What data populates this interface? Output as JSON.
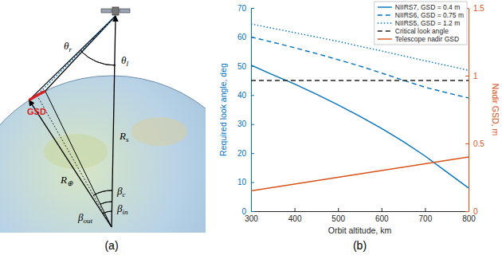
{
  "diagram": {
    "title": "(a)",
    "labels": {
      "theta_r": {
        "symbol": "θ",
        "subscript": "r"
      },
      "theta_l": {
        "symbol": "θ",
        "subscript": "l"
      },
      "r_s": {
        "symbol": "R",
        "subscript": "s"
      },
      "gsd": "GSD",
      "beta_c": {
        "symbol": "β",
        "subscript": "c"
      },
      "r_earth": {
        "symbol": "R",
        "subscript": "⊕"
      },
      "beta_out": {
        "symbol": "β",
        "subscript": "out"
      },
      "beta_in": {
        "symbol": "β",
        "subscript": "in"
      }
    }
  },
  "chart_data": {
    "type": "line",
    "title": "(b)",
    "x_label": "Orbit altitude, km",
    "y_label": "Required look angle, deg",
    "y2_label": "Nadir GSD, m",
    "x": [
      300,
      350,
      400,
      450,
      500,
      550,
      600,
      650,
      700,
      750,
      800
    ],
    "xlim": [
      300,
      800
    ],
    "xticks": [
      300,
      400,
      500,
      600,
      700,
      800
    ],
    "ylim": [
      0,
      70
    ],
    "yticks": [
      0,
      10,
      20,
      30,
      40,
      50,
      60,
      70
    ],
    "y2lim": [
      0,
      1.5
    ],
    "y2ticks": [
      0,
      0.5,
      1,
      1.5
    ],
    "grid": false,
    "legend": "northeast",
    "series": [
      {
        "name": "NIIRS7, GSD = 0.4 m",
        "color": "#0072BD",
        "line_style": "solid",
        "values": [
          50.3,
          47,
          43.8,
          40.3,
          36.6,
          32.7,
          28.5,
          24,
          19,
          13.5,
          8
        ]
      },
      {
        "name": "NIIRS6, GSD = 0.75 m",
        "color": "#0072BD",
        "line_style": "dashed",
        "values": [
          60,
          58.2,
          56.3,
          54.3,
          52.2,
          50,
          47.6,
          45.1,
          42.7,
          40.8,
          39
        ]
      },
      {
        "name": "NIIRS5, GSD = 1.2 m",
        "color": "#0072BD",
        "line_style": "dotted",
        "values": [
          64.5,
          63,
          61.5,
          60,
          58.5,
          56.8,
          55.2,
          53.5,
          51.8,
          50.2,
          48.5
        ]
      },
      {
        "name": "Critical look angle",
        "color": "#262626",
        "line_style": "dashed",
        "values": [
          45,
          45,
          45,
          45,
          45,
          45,
          45,
          45,
          45,
          45,
          45
        ]
      },
      {
        "name": "Telescope nadir GSD",
        "color": "#D95319",
        "line_style": "solid",
        "axis": "y2",
        "values": [
          0.15,
          0.175,
          0.2,
          0.225,
          0.25,
          0.275,
          0.3,
          0.325,
          0.35,
          0.375,
          0.4
        ]
      }
    ]
  }
}
